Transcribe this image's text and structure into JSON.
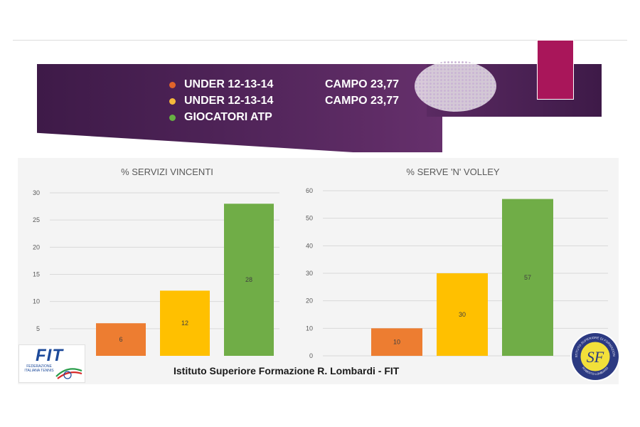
{
  "header": {
    "legend": [
      {
        "label": "UNDER 12-13-14",
        "campo": "CAMPO 23,77",
        "color": "#e0642a"
      },
      {
        "label": "UNDER 12-13-14",
        "campo": "CAMPO 23,77",
        "color": "#f5b93b"
      },
      {
        "label": "GIOCATORI ATP",
        "campo": "",
        "color": "#67b043"
      }
    ]
  },
  "colors": {
    "banner": "#4e2357",
    "accent": "#a9165a",
    "series": [
      "#ed7d31",
      "#ffc000",
      "#70ad47"
    ]
  },
  "chart_data": [
    {
      "type": "bar",
      "title": "% SERVIZI VINCENTI",
      "categories": [
        "",
        "",
        ""
      ],
      "values": [
        6,
        12,
        28
      ],
      "ylim": [
        0,
        30
      ],
      "yticks": [
        5,
        10,
        15,
        20,
        25,
        30
      ],
      "grid": true
    },
    {
      "type": "bar",
      "title": "% SERVE 'N' VOLLEY",
      "categories": [
        "",
        "",
        ""
      ],
      "values": [
        10,
        30,
        57
      ],
      "ylim": [
        0,
        60
      ],
      "yticks": [
        0,
        10,
        20,
        30,
        40,
        50,
        60
      ],
      "grid": true
    }
  ],
  "footer": {
    "institute": "Istituto Superiore Formazione R. Lombardi - FIT"
  },
  "logos": {
    "fit_letters": "FIT",
    "fit_subtitle": "FEDERAZIONE ITALIANA TENNIS",
    "seal_initials": "SF",
    "seal_ring_text": "ISTITUTO SUPERIORE DI FORMAZIONE",
    "seal_bottom_text": "ROBERTO LOMBARDI"
  }
}
